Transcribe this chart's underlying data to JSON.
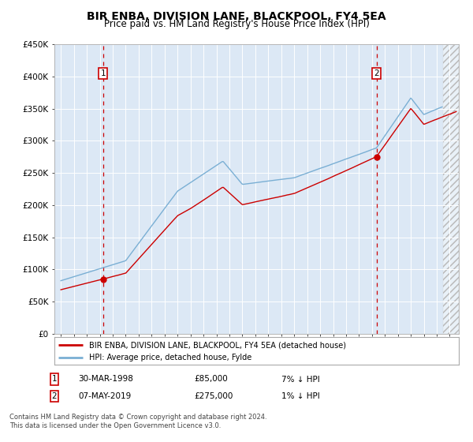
{
  "title": "BIR ENBA, DIVISION LANE, BLACKPOOL, FY4 5EA",
  "subtitle": "Price paid vs. HM Land Registry's House Price Index (HPI)",
  "ylim": [
    0,
    450000
  ],
  "yticks": [
    0,
    50000,
    100000,
    150000,
    200000,
    250000,
    300000,
    350000,
    400000,
    450000
  ],
  "ytick_labels": [
    "£0",
    "£50K",
    "£100K",
    "£150K",
    "£200K",
    "£250K",
    "£300K",
    "£350K",
    "£400K",
    "£450K"
  ],
  "plot_bg_color": "#dce8f5",
  "fig_bg_color": "#ffffff",
  "grid_color": "#ffffff",
  "transaction1": {
    "date": "30-MAR-1998",
    "price": 85000,
    "label": "1",
    "year": 1998.25
  },
  "transaction2": {
    "date": "07-MAY-2019",
    "price": 275000,
    "label": "2",
    "year": 2019.35
  },
  "legend_line1": "BIR ENBA, DIVISION LANE, BLACKPOOL, FY4 5EA (detached house)",
  "legend_line2": "HPI: Average price, detached house, Fylde",
  "footer1": "Contains HM Land Registry data © Crown copyright and database right 2024.",
  "footer2": "This data is licensed under the Open Government Licence v3.0.",
  "table_row1_label": "1",
  "table_row1_date": "30-MAR-1998",
  "table_row1_price": "£85,000",
  "table_row1_hpi": "7% ↓ HPI",
  "table_row2_label": "2",
  "table_row2_date": "07-MAY-2019",
  "table_row2_price": "£275,000",
  "table_row2_hpi": "1% ↓ HPI",
  "red_color": "#cc0000",
  "blue_color": "#7aafd4",
  "hatch_color": "#bbbbbb",
  "xmin": 1995,
  "xmax": 2025,
  "hpi_data_end_year": 2024.5
}
